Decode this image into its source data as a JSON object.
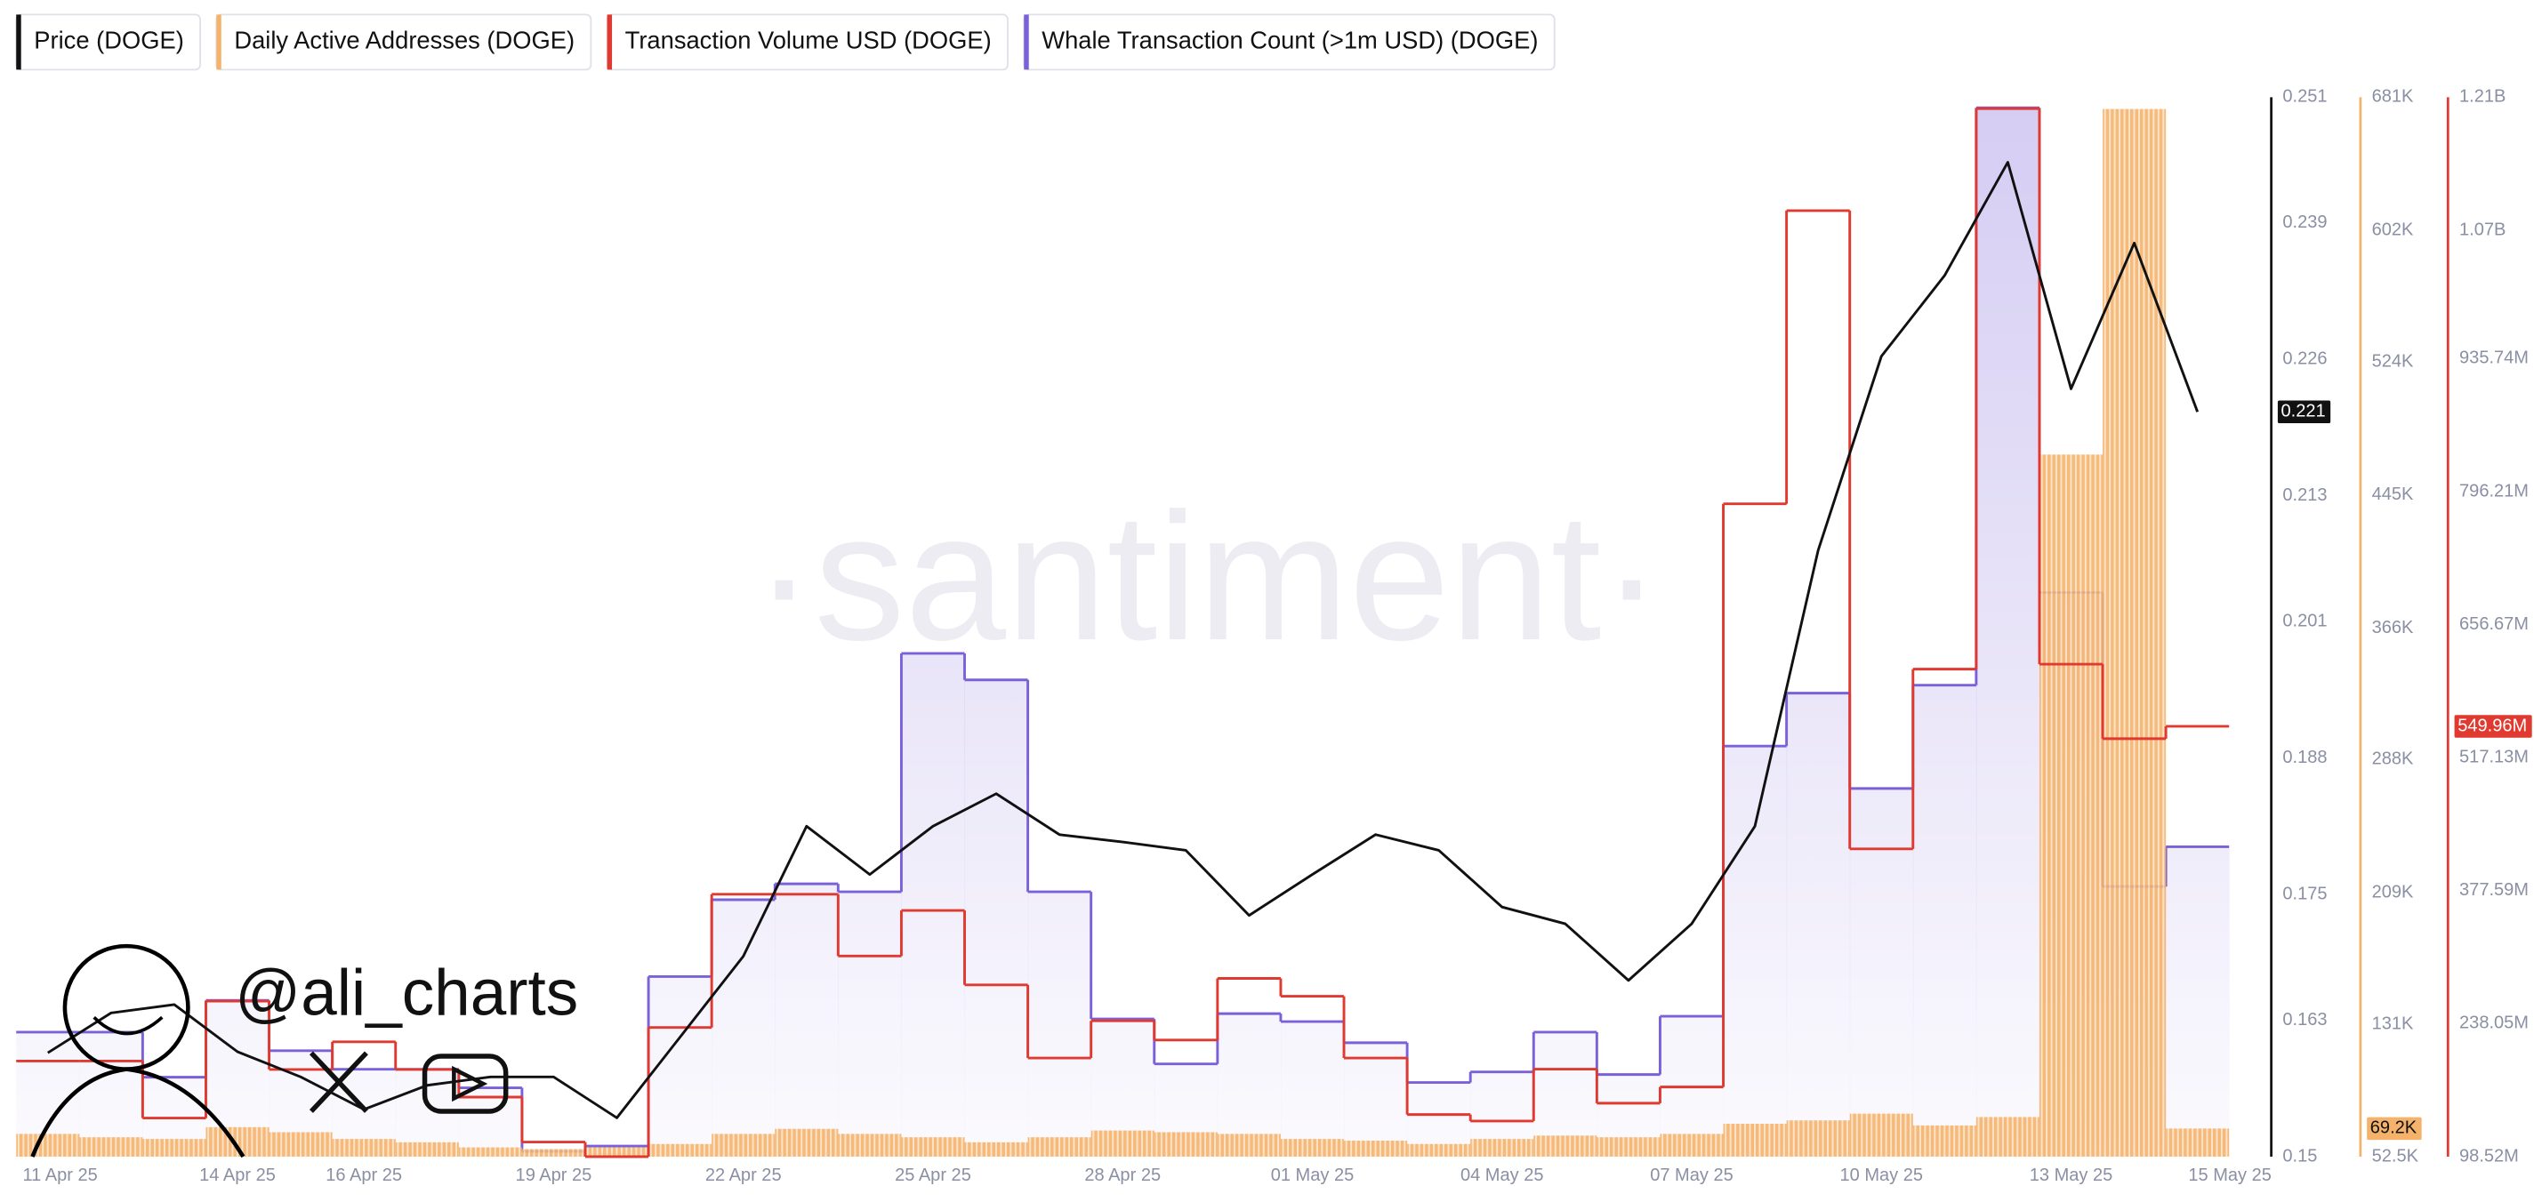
{
  "chart_data": {
    "type": "combo",
    "watermark": "·santiment·",
    "author": "@ali_charts",
    "x": [
      "11 Apr 25",
      "12 Apr 25",
      "13 Apr 25",
      "14 Apr 25",
      "15 Apr 25",
      "16 Apr 25",
      "17 Apr 25",
      "18 Apr 25",
      "19 Apr 25",
      "20 Apr 25",
      "21 Apr 25",
      "22 Apr 25",
      "23 Apr 25",
      "24 Apr 25",
      "25 Apr 25",
      "26 Apr 25",
      "27 Apr 25",
      "28 Apr 25",
      "29 Apr 25",
      "30 Apr 25",
      "01 May 25",
      "02 May 25",
      "03 May 25",
      "04 May 25",
      "05 May 25",
      "06 May 25",
      "07 May 25",
      "08 May 25",
      "09 May 25",
      "10 May 25",
      "11 May 25",
      "12 May 25",
      "13 May 25",
      "14 May 25",
      "15 May 25"
    ],
    "ylim": [
      0.15,
      0.251
    ],
    "yticks": [
      0.15,
      0.163,
      0.175,
      0.188,
      0.201,
      0.213,
      0.226,
      0.239,
      0.251
    ],
    "y2lim": [
      52500,
      681000
    ],
    "y2ticks": [
      {
        "value": 52500,
        "label": "52.5K"
      },
      {
        "value": 131000,
        "label": "131K"
      },
      {
        "value": 209000,
        "label": "209K"
      },
      {
        "value": 288000,
        "label": "288K"
      },
      {
        "value": 366000,
        "label": "366K"
      },
      {
        "value": 445000,
        "label": "445K"
      },
      {
        "value": 524000,
        "label": "524K"
      },
      {
        "value": 602000,
        "label": "602K"
      },
      {
        "value": 681000,
        "label": "681K"
      }
    ],
    "y3lim": [
      98520000,
      1210000000
    ],
    "y3ticks": [
      {
        "value": 98520000,
        "label": "98.52M"
      },
      {
        "value": 238050000,
        "label": "238.05M"
      },
      {
        "value": 377590000,
        "label": "377.59M"
      },
      {
        "value": 517130000,
        "label": "517.13M"
      },
      {
        "value": 656670000,
        "label": "656.67M"
      },
      {
        "value": 796210000,
        "label": "796.21M"
      },
      {
        "value": 935740000,
        "label": "935.74M"
      },
      {
        "value": 1070000000,
        "label": "1.07B"
      },
      {
        "value": 1210000000,
        "label": "1.21B"
      }
    ],
    "y4lim": [
      0,
      40
    ],
    "series": [
      {
        "name": "Price (DOGE)",
        "type": "line",
        "axis": "y",
        "color": "#111111",
        "values": [
          0.1599,
          0.1637,
          0.1645,
          0.16,
          0.1576,
          0.1545,
          0.1568,
          0.1576,
          0.1576,
          0.1537,
          0.1614,
          0.1691,
          0.1815,
          0.1769,
          0.1815,
          0.1846,
          0.1807,
          0.18,
          0.1792,
          0.173,
          0.1769,
          0.1807,
          0.1792,
          0.1738,
          0.1722,
          0.1668,
          0.1722,
          0.1815,
          0.2078,
          0.2263,
          0.234,
          0.2448,
          0.2232,
          0.2371,
          0.221
        ]
      },
      {
        "name": "Daily Active Addresses (DOGE)",
        "type": "bar",
        "axis": "y2",
        "color": "#f5b26b",
        "last_label": "69.2K",
        "values": [
          66000,
          64000,
          63000,
          70000,
          67000,
          63000,
          61000,
          58000,
          57000,
          58000,
          60000,
          66000,
          69000,
          66000,
          64000,
          61000,
          64000,
          68000,
          67000,
          66000,
          63000,
          62000,
          60000,
          63000,
          65000,
          64000,
          66000,
          72000,
          74000,
          78000,
          71000,
          76000,
          469000,
          674000,
          69200
        ]
      },
      {
        "name": "Transaction Volume USD (DOGE)",
        "type": "step",
        "axis": "y3",
        "color": "#e0392f",
        "last_label": "549.96M",
        "values": [
          198800000,
          198800000,
          139000000,
          261700000,
          190000000,
          219000000,
          190000000,
          161000000,
          113800000,
          98520000,
          234000000,
          373800000,
          373800000,
          309000000,
          356800000,
          278700000,
          202000000,
          241000000,
          220900000,
          285500000,
          266800000,
          202000000,
          142700000,
          135900000,
          190300000,
          154600000,
          171600000,
          783400000,
          1091000000,
          421400000,
          610000000,
          1198000000,
          615200000,
          537000000,
          549960000
        ]
      },
      {
        "name": "Whale Transaction Count (>1m USD) (DOGE)",
        "type": "step-area",
        "axis": "y4",
        "color": "#7b61d9",
        "values": [
          4.7,
          4.7,
          3.0,
          5.9,
          4.0,
          3.3,
          3.3,
          2.6,
          0.2,
          0.4,
          6.8,
          9.7,
          10.3,
          10.0,
          19.0,
          18.0,
          10.0,
          5.2,
          3.5,
          5.4,
          5.1,
          4.3,
          2.8,
          3.2,
          4.7,
          3.1,
          5.3,
          15.5,
          17.5,
          13.9,
          17.8,
          39.6,
          21.3,
          10.2,
          11.7
        ]
      }
    ]
  }
}
